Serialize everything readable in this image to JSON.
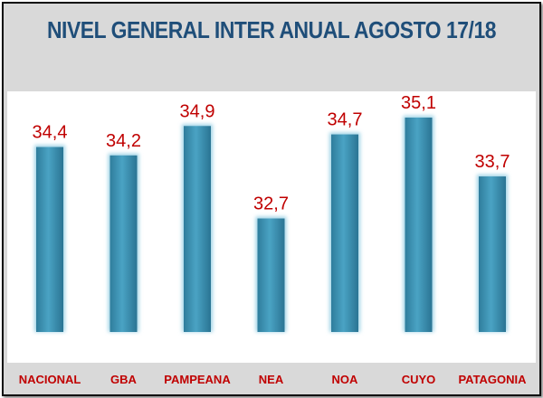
{
  "chart_data": {
    "type": "bar",
    "title": "NIVEL GENERAL INTER ANUAL AGOSTO 17/18",
    "categories": [
      "NACIONAL",
      "GBA",
      "PAMPEANA",
      "NEA",
      "NOA",
      "CUYO",
      "PATAGONIA"
    ],
    "values": [
      34.4,
      34.2,
      34.9,
      32.7,
      34.7,
      35.1,
      33.7
    ],
    "value_labels": [
      "34,4",
      "34,2",
      "34,9",
      "32,7",
      "34,7",
      "35,1",
      "33,7"
    ],
    "ylim": [
      30.0,
      35.1
    ],
    "grid": false,
    "colors": {
      "bar": "#3a8fb0",
      "label": "#c00000",
      "title": "#1f4e79",
      "background": "#d9d9d9"
    }
  }
}
